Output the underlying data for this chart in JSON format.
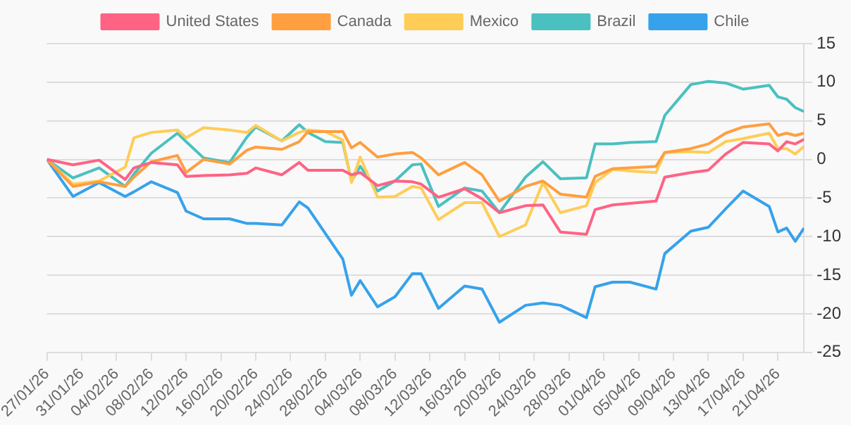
{
  "chart_data": {
    "type": "line",
    "x": [
      "--01-27",
      "--01-30",
      "--02-02",
      "--02-05",
      "--02-06",
      "--02-08",
      "--02-11",
      "--02-12",
      "--02-14",
      "--02-17",
      "--02-19",
      "--02-20",
      "--02-23",
      "--02-25",
      "--02-26",
      "--02-28",
      "--03-02",
      "--03-03",
      "--03-04",
      "--03-06",
      "--03-08",
      "--03-10",
      "--03-11",
      "--03-13",
      "--03-16",
      "--03-18",
      "--03-20",
      "--03-23",
      "--03-25",
      "--03-27",
      "--03-30",
      "--03-31",
      "--04-02",
      "--04-04",
      "--04-07",
      "--04-08",
      "--04-11",
      "--04-13",
      "--04-15",
      "--04-17",
      "--04-20",
      "--04-21",
      "--04-22",
      "--04-23",
      "--04-24"
    ],
    "series": [
      {
        "name": "United States",
        "color": "#ff6384",
        "values": [
          0,
          -0.7,
          -0.1,
          -2.6,
          -1.1,
          -0.4,
          -0.7,
          -2.2,
          -2.1,
          -2,
          -1.8,
          -1.1,
          -2,
          -0.4,
          -1.4,
          -1.4,
          -1.4,
          -2,
          -1.7,
          -3.4,
          -2.8,
          -2.9,
          -3.2,
          -4.9,
          -3.8,
          -5.1,
          -6.9,
          -6,
          -5.9,
          -9.4,
          -9.7,
          -6.5,
          -5.9,
          -5.7,
          -5.4,
          -2.3,
          -1.7,
          -1.4,
          0.7,
          2.2,
          2,
          1.1,
          2.3,
          2,
          2.6
        ]
      },
      {
        "name": "Canada",
        "color": "#ff9f40",
        "values": [
          0,
          -3.5,
          -2.9,
          -3.5,
          -2.3,
          -0.3,
          0.5,
          -1.7,
          0,
          -0.6,
          1.2,
          1.6,
          1.3,
          2.3,
          3.6,
          3.6,
          3.6,
          1.5,
          2.2,
          0.3,
          0.7,
          0.9,
          0.2,
          -2,
          -0.4,
          -2,
          -5.4,
          -3.5,
          -2.8,
          -4.5,
          -4.9,
          -2.2,
          -1.2,
          -1.1,
          -0.9,
          0.9,
          1.4,
          2,
          3.4,
          4.2,
          4.6,
          3.1,
          3.4,
          3.1,
          3.4
        ]
      },
      {
        "name": "Mexico",
        "color": "#ffcd56",
        "values": [
          0,
          -3.2,
          -2.8,
          -1,
          2.8,
          3.5,
          3.8,
          2.8,
          4.1,
          3.8,
          3.5,
          4.4,
          2.4,
          3.5,
          3.8,
          3.6,
          2.5,
          -3,
          0.3,
          -4.9,
          -4.8,
          -3.5,
          -3.7,
          -7.8,
          -5.6,
          -5.6,
          -10,
          -8.5,
          -3,
          -6.9,
          -6,
          -3,
          -1.3,
          -1.5,
          -1.7,
          0.9,
          1,
          0.9,
          2.3,
          2.7,
          3.4,
          1.4,
          1.4,
          0.7,
          1.7
        ]
      },
      {
        "name": "Brazil",
        "color": "#4bc0c0",
        "values": [
          0,
          -2.4,
          -1.1,
          -3.5,
          -1.9,
          0.8,
          3.4,
          2.3,
          0.2,
          -0.4,
          2.9,
          4.2,
          2.4,
          4.5,
          3.5,
          2.3,
          2.2,
          -2.8,
          -0.9,
          -4.1,
          -2.8,
          -0.7,
          -0.6,
          -6.1,
          -3.7,
          -4.1,
          -6.9,
          -2.3,
          -0.3,
          -2.5,
          -2.4,
          2,
          2,
          2.2,
          2.3,
          5.7,
          9.7,
          10.1,
          9.9,
          9.1,
          9.6,
          8.1,
          7.8,
          6.7,
          6.2
        ]
      },
      {
        "name": "Chile",
        "color": "#36a2eb",
        "values": [
          0,
          -4.8,
          -3,
          -4.8,
          -4.2,
          -2.9,
          -4.3,
          -6.7,
          -7.7,
          -7.7,
          -8.3,
          -8.3,
          -8.5,
          -5.5,
          -6.3,
          -9.6,
          -12.9,
          -17.6,
          -15.7,
          -19.1,
          -17.8,
          -14.8,
          -14.8,
          -19.3,
          -16.4,
          -16.8,
          -21.1,
          -18.9,
          -18.6,
          -18.9,
          -20.5,
          -16.5,
          -15.9,
          -15.9,
          -16.8,
          -12.2,
          -9.3,
          -8.8,
          -6.4,
          -4.1,
          -6.1,
          -9.4,
          -8.9,
          -10.6,
          -8.9
        ]
      }
    ],
    "xlim": [
      "--01-27",
      "--04-24"
    ],
    "xticks": [
      {
        "value": "--01-27",
        "label": "27/01/26"
      },
      {
        "value": "--01-31",
        "label": "31/01/26"
      },
      {
        "value": "--02-04",
        "label": "04/02/26"
      },
      {
        "value": "--02-08",
        "label": "08/02/26"
      },
      {
        "value": "--02-12",
        "label": "12/02/26"
      },
      {
        "value": "--02-16",
        "label": "16/02/26"
      },
      {
        "value": "--02-20",
        "label": "20/02/26"
      },
      {
        "value": "--02-24",
        "label": "24/02/26"
      },
      {
        "value": "--02-28",
        "label": "28/02/26"
      },
      {
        "value": "--03-04",
        "label": "04/03/26"
      },
      {
        "value": "--03-08",
        "label": "08/03/26"
      },
      {
        "value": "--03-12",
        "label": "12/03/26"
      },
      {
        "value": "--03-16",
        "label": "16/03/26"
      },
      {
        "value": "--03-20",
        "label": "20/03/26"
      },
      {
        "value": "--03-24",
        "label": "24/03/26"
      },
      {
        "value": "--03-28",
        "label": "28/03/26"
      },
      {
        "value": "--04-01",
        "label": "01/04/26"
      },
      {
        "value": "--04-05",
        "label": "05/04/26"
      },
      {
        "value": "--04-09",
        "label": "09/04/26"
      },
      {
        "value": "--04-13",
        "label": "13/04/26"
      },
      {
        "value": "--04-17",
        "label": "17/04/26"
      },
      {
        "value": "--04-21",
        "label": "21/04/26"
      }
    ],
    "ylim": [
      -25,
      15
    ],
    "yticks": [
      -25,
      -20,
      -15,
      -10,
      -5,
      0,
      5,
      10,
      15
    ],
    "grid": "y",
    "legend": "top"
  }
}
